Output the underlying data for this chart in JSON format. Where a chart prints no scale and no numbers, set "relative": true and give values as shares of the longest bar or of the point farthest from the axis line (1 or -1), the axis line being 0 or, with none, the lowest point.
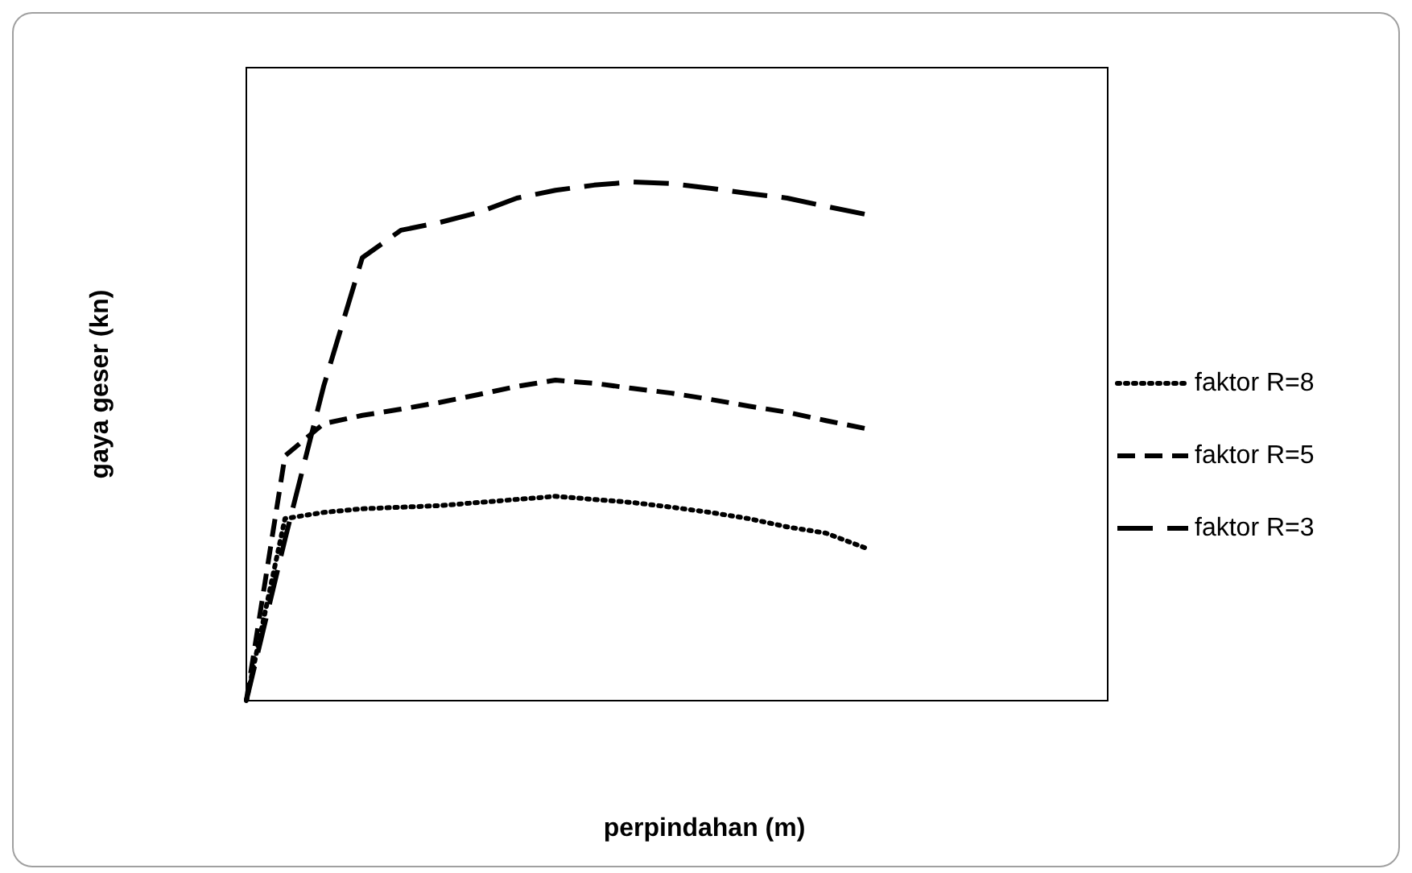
{
  "chart_data": {
    "type": "line",
    "relative": true,
    "xlabel": "perpindahan (m)",
    "ylabel": "gaya geser (kn)",
    "legend": "right",
    "marker": "none",
    "categories": [
      null,
      null,
      null,
      null,
      null,
      null,
      null,
      null,
      null,
      null,
      null,
      null,
      null,
      null,
      null,
      null,
      null
    ],
    "series": [
      {
        "name": "faktor R=8",
        "color": "#000000",
        "line_style": "dotted",
        "values": [
          0,
          0.351,
          0.363,
          0.37,
          0.373,
          0.376,
          0.382,
          0.388,
          0.394,
          0.388,
          0.382,
          0.373,
          0.363,
          0.351,
          0.335,
          0.323,
          0.295
        ]
      },
      {
        "name": "faktor R=5",
        "color": "#000000",
        "line_style": "dashed",
        "values": [
          0,
          0.472,
          0.534,
          0.55,
          0.562,
          0.575,
          0.59,
          0.606,
          0.618,
          0.612,
          0.602,
          0.593,
          0.581,
          0.568,
          0.556,
          0.54,
          0.525
        ]
      },
      {
        "name": "faktor R=3",
        "color": "#000000",
        "line_style": "dashed",
        "values": [
          0,
          0.311,
          0.606,
          0.854,
          0.907,
          0.922,
          0.941,
          0.969,
          0.984,
          0.994,
          1,
          0.997,
          0.988,
          0.978,
          0.969,
          0.953,
          0.938
        ]
      }
    ]
  }
}
